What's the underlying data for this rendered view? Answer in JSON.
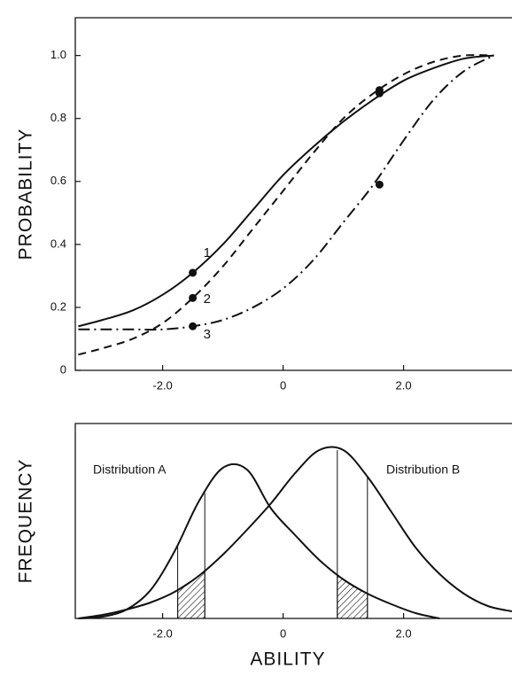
{
  "chart_data": [
    {
      "type": "line",
      "y_label": "PROBABILITY",
      "xlim": [
        -3.45,
        3.8
      ],
      "ylim": [
        0,
        1.12
      ],
      "xticks": [
        {
          "value": -2,
          "label": "-2.0"
        },
        0,
        {
          "value": 2,
          "label": "2.0"
        }
      ],
      "yticks": [
        0,
        0.2,
        0.4,
        0.6,
        0.8,
        {
          "value": 1,
          "label": "1.0"
        }
      ],
      "x": [
        -3.4,
        -3.0,
        -2.5,
        -2.0,
        -1.5,
        -1.0,
        -0.5,
        0,
        0.5,
        1.0,
        1.5,
        2.0,
        2.5,
        3.0,
        3.5
      ],
      "series": [
        {
          "name": "1",
          "color": "#111111",
          "dash": "solid",
          "values": [
            0.14,
            0.16,
            0.19,
            0.24,
            0.31,
            0.4,
            0.51,
            0.62,
            0.71,
            0.79,
            0.86,
            0.92,
            0.96,
            0.99,
            1.0
          ],
          "marker_x": [
            -1.5,
            1.6
          ],
          "marker_y": [
            0.31,
            0.88
          ]
        },
        {
          "name": "2",
          "color": "#111111",
          "dash": "dashed",
          "values": [
            0.05,
            0.07,
            0.1,
            0.15,
            0.23,
            0.33,
            0.45,
            0.57,
            0.69,
            0.8,
            0.88,
            0.94,
            0.98,
            1.0,
            1.0
          ],
          "marker_x": [
            -1.5,
            1.6
          ],
          "marker_y": [
            0.23,
            0.89
          ]
        },
        {
          "name": "3",
          "color": "#111111",
          "dash": "dashdot",
          "values": [
            0.13,
            0.13,
            0.13,
            0.13,
            0.14,
            0.16,
            0.2,
            0.26,
            0.35,
            0.47,
            0.59,
            0.73,
            0.86,
            0.95,
            1.0
          ],
          "marker_x": [
            -1.5,
            1.6
          ],
          "marker_y": [
            0.14,
            0.59
          ]
        }
      ]
    },
    {
      "type": "line",
      "y_label": "FREQUENCY",
      "x_label": "ABILITY",
      "xlim": [
        -3.45,
        3.8
      ],
      "ylim": [
        0,
        1.1
      ],
      "xticks": [
        {
          "value": -2,
          "label": "-2.0"
        },
        0,
        {
          "value": 2,
          "label": "2.0"
        }
      ],
      "x": [
        -3.4,
        -3.0,
        -2.6,
        -2.2,
        -1.8,
        -1.4,
        -1.0,
        -0.6,
        -0.2,
        0.2,
        0.6,
        1.0,
        1.4,
        1.8,
        2.2,
        2.6,
        3.0,
        3.4,
        3.8
      ],
      "series": [
        {
          "name": "Distribution A",
          "color": "#111111",
          "dash": "solid",
          "values": [
            0.0,
            0.01,
            0.05,
            0.16,
            0.38,
            0.66,
            0.85,
            0.84,
            0.62,
            0.47,
            0.33,
            0.22,
            0.14,
            0.08,
            0.03,
            0.0,
            null,
            null,
            null
          ]
        },
        {
          "name": "Distribution B",
          "color": "#111111",
          "dash": "solid",
          "values": [
            0.0,
            0.02,
            0.05,
            0.09,
            0.15,
            0.24,
            0.36,
            0.5,
            0.65,
            0.82,
            0.95,
            0.95,
            0.8,
            0.6,
            0.4,
            0.25,
            0.14,
            0.07,
            0.04
          ]
        }
      ],
      "shaded_x": [
        [
          -1.75,
          -1.3
        ],
        [
          0.9,
          1.4
        ]
      ]
    }
  ]
}
